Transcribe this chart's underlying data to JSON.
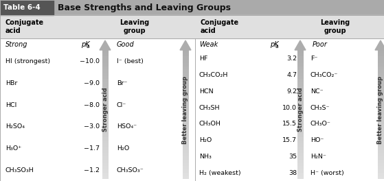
{
  "title": "Base Strengths and Leaving Groups",
  "table_label": "Table 6-4",
  "left_section": {
    "label_strong": "Strong",
    "label_quality": "Good",
    "rows": [
      [
        "HI (strongest)",
        "−10.0",
        "I⁻ (best)"
      ],
      [
        "HBr",
        "−9.0",
        "Br⁻"
      ],
      [
        "HCl",
        "−8.0",
        "Cl⁻"
      ],
      [
        "H₂SO₄",
        "−3.0",
        "HSO₄⁻"
      ],
      [
        "H₃O⁺",
        "−1.7",
        "H₂O"
      ],
      [
        "CH₃SO₃H",
        "−1.2",
        "CH₃SO₃⁻"
      ]
    ],
    "pka_label": "pK",
    "arrow_label": "Stronger acid",
    "arrow_label2": "Better leaving group"
  },
  "right_section": {
    "label_weak": "Weak",
    "label_quality": "Poor",
    "rows": [
      [
        "HF",
        "3.2",
        "F⁻"
      ],
      [
        "CH₃CO₂H",
        "4.7",
        "CH₃CO₂⁻"
      ],
      [
        "HCN",
        "9.2",
        "NC⁻"
      ],
      [
        "CH₃SH",
        "10.0",
        "CH₃S⁻"
      ],
      [
        "CH₃OH",
        "15.5",
        "CH₃O⁻"
      ],
      [
        "H₂O",
        "15.7",
        "HO⁻"
      ],
      [
        "NH₃",
        "35",
        "H₂N⁻"
      ],
      [
        "H₂ (weakest)",
        "38",
        "H⁻ (worst)"
      ]
    ],
    "pka_label": "pK",
    "arrow_label": "Stronger acid",
    "arrow_label2": "Better leaving group"
  },
  "title_bar_color": "#888888",
  "table_label_bg": "#555555",
  "header_bg": "#d8d8d8",
  "body_bg": "#ffffff",
  "border_color": "#aaaaaa",
  "arrow_color_top": "#c8c8c8",
  "arrow_color_bot": "#e8e8e8"
}
